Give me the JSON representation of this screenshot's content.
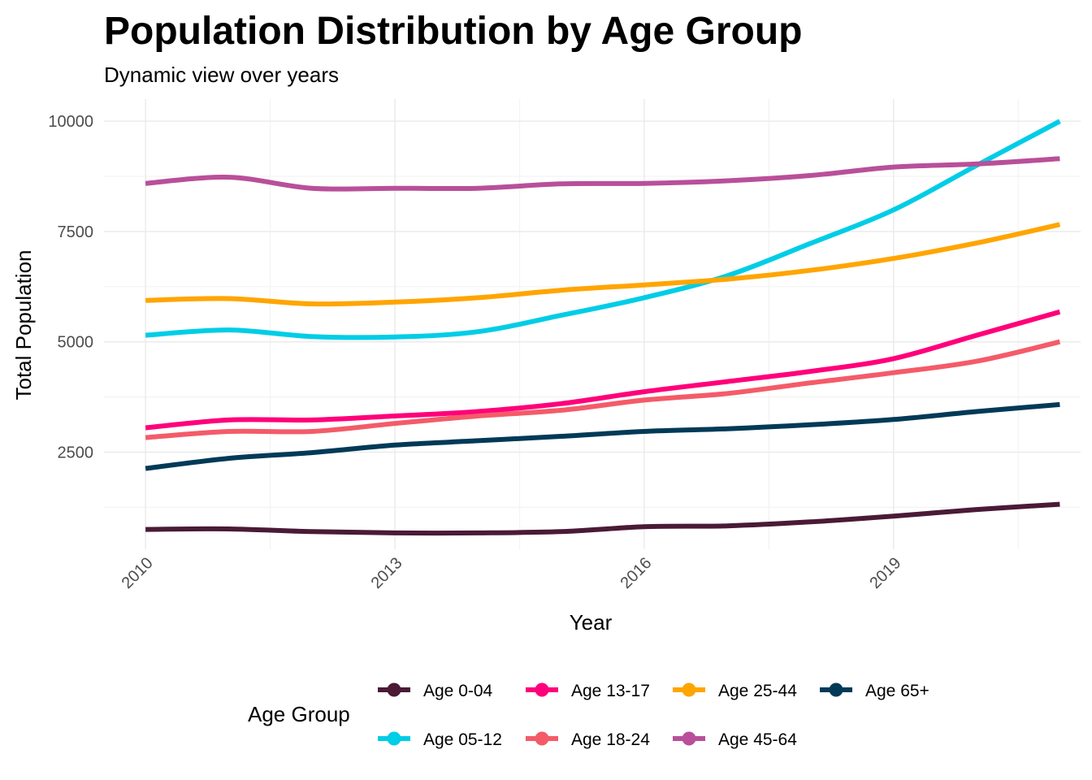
{
  "chart_data": {
    "type": "line",
    "title": "Population Distribution by Age Group",
    "subtitle": "Dynamic view over years",
    "xlabel": "Year",
    "ylabel": "Total Population",
    "x": [
      2010,
      2011,
      2012,
      2013,
      2014,
      2015,
      2016,
      2017,
      2018,
      2019,
      2020,
      2021
    ],
    "x_ticks": [
      2010,
      2013,
      2016,
      2019
    ],
    "x_tick_labels": [
      "2010",
      "2013",
      "2016",
      "2019"
    ],
    "y_ticks": [
      2500,
      5000,
      7500,
      10000
    ],
    "y_tick_labels": [
      "2500",
      "5000",
      "7500",
      "10000"
    ],
    "xlim": [
      2009.5,
      2021.25
    ],
    "ylim": [
      300,
      10500
    ],
    "grid": true,
    "legend_position": "bottom",
    "legend_title": "Age Group",
    "series": [
      {
        "name": "Age 0-04",
        "color": "#4a1a36",
        "values": [
          750,
          760,
          700,
          670,
          670,
          700,
          810,
          830,
          920,
          1050,
          1200,
          1320
        ]
      },
      {
        "name": "Age 05-12",
        "color": "#00cde6",
        "values": [
          5150,
          5270,
          5120,
          5110,
          5230,
          5600,
          6000,
          6500,
          7230,
          7990,
          9000,
          10000
        ]
      },
      {
        "name": "Age 13-17",
        "color": "#ff007a",
        "values": [
          3050,
          3230,
          3230,
          3320,
          3420,
          3600,
          3870,
          4100,
          4330,
          4620,
          5150,
          5680
        ]
      },
      {
        "name": "Age 18-24",
        "color": "#f45b69",
        "values": [
          2830,
          2970,
          2970,
          3150,
          3320,
          3450,
          3680,
          3830,
          4070,
          4300,
          4560,
          5000
        ]
      },
      {
        "name": "Age 25-44",
        "color": "#ffa500",
        "values": [
          5940,
          5980,
          5860,
          5900,
          6000,
          6170,
          6290,
          6420,
          6620,
          6890,
          7240,
          7660
        ]
      },
      {
        "name": "Age 45-64",
        "color": "#b94f9a",
        "values": [
          8590,
          8730,
          8480,
          8480,
          8480,
          8580,
          8590,
          8650,
          8770,
          8960,
          9030,
          9150
        ]
      },
      {
        "name": "Age 65+",
        "color": "#003a57",
        "values": [
          2130,
          2360,
          2490,
          2660,
          2760,
          2860,
          2970,
          3030,
          3120,
          3240,
          3420,
          3580
        ]
      }
    ]
  }
}
